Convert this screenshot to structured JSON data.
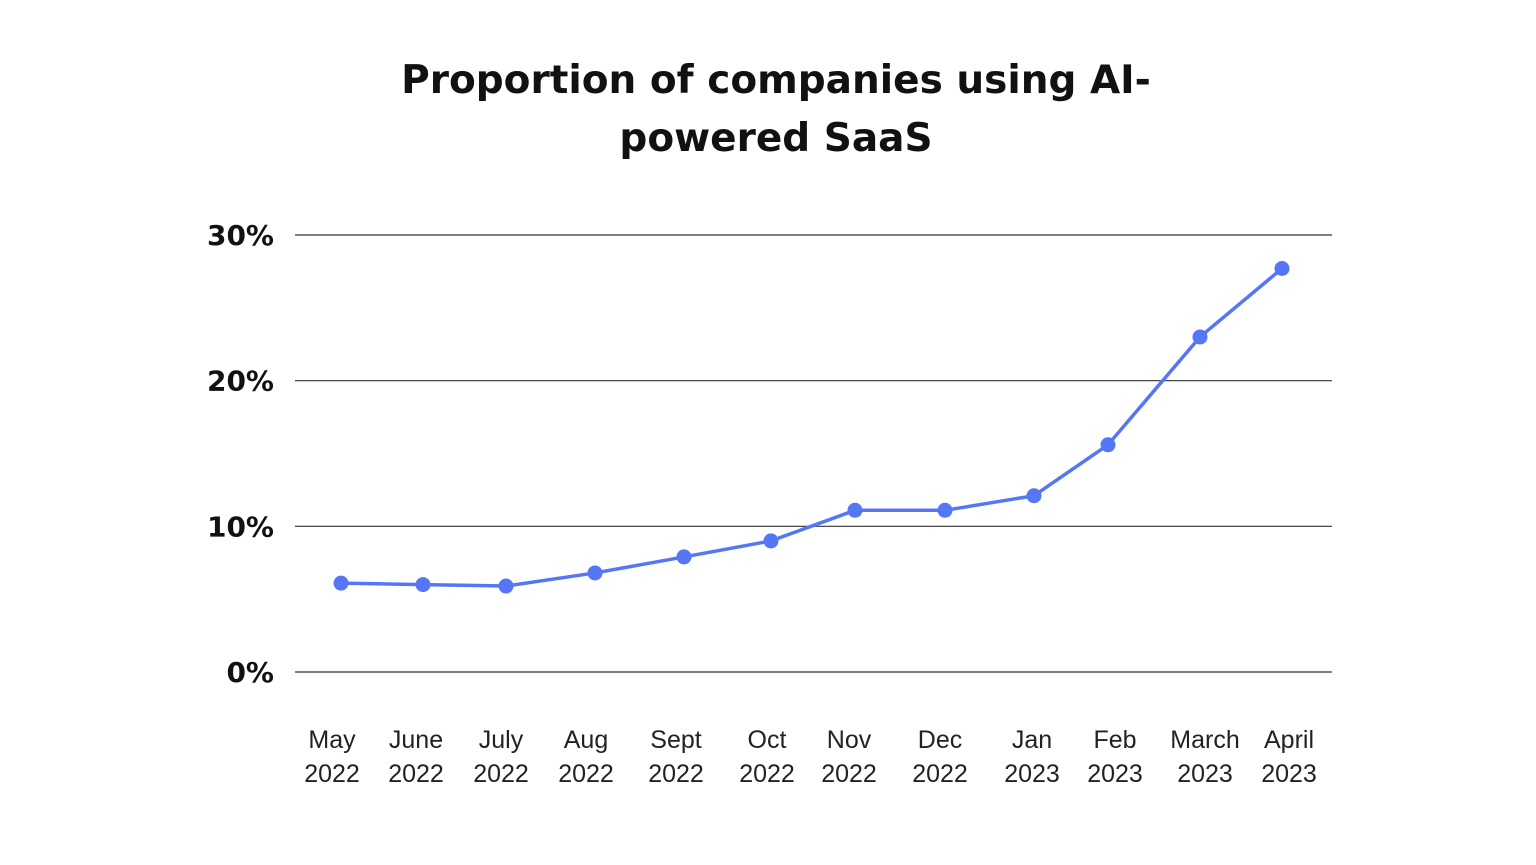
{
  "chart_data": {
    "type": "line",
    "title_lines": [
      "Proportion of companies using AI-",
      "powered SaaS"
    ],
    "categories": [
      [
        "May",
        "2022"
      ],
      [
        "June",
        "2022"
      ],
      [
        "July",
        "2022"
      ],
      [
        "Aug",
        "2022"
      ],
      [
        "Sept",
        "2022"
      ],
      [
        "Oct",
        "2022"
      ],
      [
        "Nov",
        "2022"
      ],
      [
        "Dec",
        "2022"
      ],
      [
        "Jan",
        "2023"
      ],
      [
        "Feb",
        "2023"
      ],
      [
        "March",
        "2023"
      ],
      [
        "April",
        "2023"
      ]
    ],
    "values": [
      6.1,
      6.0,
      5.9,
      6.8,
      7.9,
      9.0,
      11.1,
      11.1,
      12.1,
      15.6,
      23.0,
      27.7
    ],
    "ylim": [
      0,
      30
    ],
    "yticks": [
      0,
      10,
      20,
      30
    ],
    "ytick_labels": [
      "0%",
      "10%",
      "20%",
      "30%"
    ],
    "grid": true,
    "series_color": "#5577f5",
    "gridline_color": "#333333"
  }
}
